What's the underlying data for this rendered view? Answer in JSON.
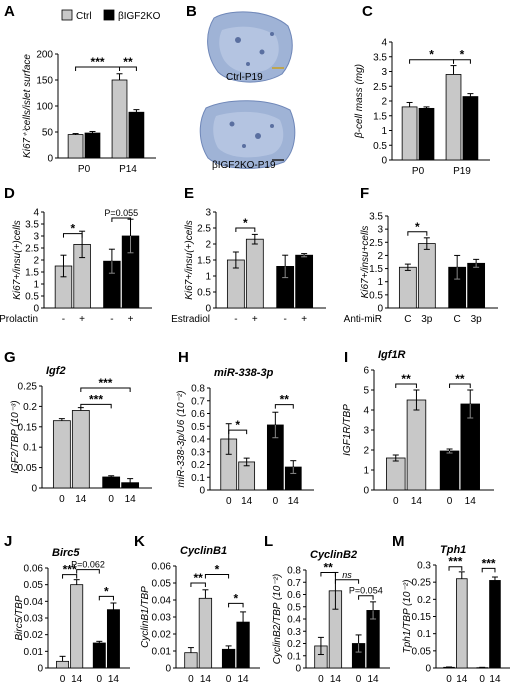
{
  "legend": {
    "ctrl": "Ctrl",
    "ko": "βIGF2KO"
  },
  "colors": {
    "ctrl": "#c8c8c8",
    "ko": "#000000"
  },
  "images": {
    "b_top_caption": "Ctrl-P19",
    "b_bottom_caption": "βIGF2KO-P19"
  },
  "chart_data": [
    {
      "id": "A",
      "type": "bar",
      "ylabel": "Ki67⁺⁾cells/islet surface",
      "ylim": [
        0,
        200
      ],
      "yticks": [
        "0",
        "50",
        "100",
        "150",
        "200"
      ],
      "groups": [
        "P0",
        "P14"
      ],
      "xlabels": [
        "P0",
        "P14"
      ],
      "series": [
        {
          "name": "Ctrl",
          "values": [
            45,
            150
          ],
          "errors": [
            2,
            12
          ]
        },
        {
          "name": "βIGF2KO",
          "values": [
            48,
            88
          ],
          "errors": [
            3,
            5
          ]
        }
      ],
      "sig": [
        {
          "text": "***",
          "a": [
            0,
            0
          ],
          "b": [
            1,
            0
          ],
          "level": 175
        },
        {
          "text": "**",
          "a": [
            1,
            0
          ],
          "b": [
            1,
            1
          ],
          "level": 175
        }
      ]
    },
    {
      "id": "C",
      "type": "bar",
      "ylabel": "β-cell mass (mg)",
      "ylim": [
        0,
        4
      ],
      "yticks": [
        "0",
        "0.5",
        "1",
        "1.5",
        "2",
        "2.5",
        "3",
        "3.5",
        "4"
      ],
      "groups": [
        "P0",
        "P19"
      ],
      "xlabels": [
        "P0",
        "P19"
      ],
      "series": [
        {
          "name": "Ctrl",
          "values": [
            1.8,
            2.9
          ],
          "errors": [
            0.15,
            0.3
          ]
        },
        {
          "name": "βIGF2KO",
          "values": [
            1.75,
            2.15
          ],
          "errors": [
            0.05,
            0.1
          ]
        }
      ],
      "sig": [
        {
          "text": "*",
          "a": [
            0,
            0
          ],
          "b": [
            1,
            0
          ],
          "level": 3.4
        },
        {
          "text": "*",
          "a": [
            1,
            0
          ],
          "b": [
            1,
            1
          ],
          "level": 3.4
        }
      ]
    },
    {
      "id": "D",
      "type": "bar",
      "ylabel": "Ki67+/insu(+)cells",
      "ylim": [
        0,
        4
      ],
      "yticks": [
        "0",
        "0.5",
        "1",
        "1.5",
        "2",
        "2.5",
        "3",
        "3.5",
        "4"
      ],
      "groups": [
        "Ctrl",
        "KO"
      ],
      "xlabels": [
        "-",
        "+",
        "-",
        "+"
      ],
      "xcaption": "Prolactin",
      "series": [
        {
          "name": "Ctrl",
          "values": [
            1.75,
            2.65
          ],
          "errors": [
            0.45,
            0.55
          ]
        },
        {
          "name": "βIGF2KO",
          "values": [
            1.95,
            3.0
          ],
          "errors": [
            0.5,
            0.7
          ]
        }
      ],
      "sig": [
        {
          "text": "*",
          "a": [
            0,
            0
          ],
          "b": [
            0,
            1
          ],
          "level": 3.1
        },
        {
          "text": "P=0.055",
          "a": [
            1,
            0
          ],
          "b": [
            1,
            1
          ],
          "level": 3.75
        }
      ]
    },
    {
      "id": "E",
      "type": "bar",
      "ylabel": "Ki67+/insu(+)cells",
      "ylim": [
        0,
        3
      ],
      "yticks": [
        "0",
        "0.5",
        "1",
        "1.5",
        "2",
        "2.5",
        "3"
      ],
      "groups": [
        "Ctrl",
        "KO"
      ],
      "xlabels": [
        "-",
        "+",
        "-",
        "+"
      ],
      "xcaption": "Estradiol",
      "series": [
        {
          "name": "Ctrl",
          "values": [
            1.5,
            2.15
          ],
          "errors": [
            0.25,
            0.15
          ]
        },
        {
          "name": "βIGF2KO",
          "values": [
            1.3,
            1.65
          ],
          "errors": [
            0.35,
            0.05
          ]
        }
      ],
      "sig": [
        {
          "text": "*",
          "a": [
            0,
            0
          ],
          "b": [
            0,
            1
          ],
          "level": 2.5
        }
      ]
    },
    {
      "id": "F",
      "type": "bar",
      "ylabel": "Ki67+/insu+cells",
      "ylim": [
        0,
        3.5
      ],
      "yticks": [
        "0",
        "0.5",
        "1",
        "1.5",
        "2",
        "2.5",
        "3",
        "3.5"
      ],
      "groups": [
        "Ctrl",
        "KO"
      ],
      "xlabels": [
        "C",
        "3p",
        "C",
        "3p"
      ],
      "xcaption": "Anti-miR",
      "series": [
        {
          "name": "Ctrl",
          "values": [
            1.55,
            2.45
          ],
          "errors": [
            0.12,
            0.22
          ]
        },
        {
          "name": "βIGF2KO",
          "values": [
            1.55,
            1.7
          ],
          "errors": [
            0.45,
            0.15
          ]
        }
      ],
      "sig": [
        {
          "text": "*",
          "a": [
            0,
            0
          ],
          "b": [
            0,
            1
          ],
          "level": 2.9
        }
      ]
    },
    {
      "id": "G",
      "type": "bar",
      "title": "Igf2",
      "ylabel": "IGF2/TBP (10⁻³)",
      "ylim": [
        0,
        0.25
      ],
      "yticks": [
        "0",
        "0.05",
        "0.1",
        "0.15",
        "0.2",
        "0.25"
      ],
      "groups": [
        "Ctrl",
        "KO"
      ],
      "xlabels": [
        "0",
        "14",
        "0",
        "14"
      ],
      "series": [
        {
          "name": "Ctrl",
          "values": [
            0.165,
            0.19
          ],
          "errors": [
            0.005,
            0.007
          ]
        },
        {
          "name": "βIGF2KO",
          "values": [
            0.027,
            0.013
          ],
          "errors": [
            0.003,
            0.01
          ]
        }
      ],
      "sig": [
        {
          "text": "***",
          "a": [
            0,
            1
          ],
          "b": [
            1,
            0
          ],
          "level": 0.205
        },
        {
          "text": "***",
          "a": [
            0,
            1
          ],
          "b": [
            1,
            1
          ],
          "level": 0.245
        }
      ]
    },
    {
      "id": "H",
      "type": "bar",
      "title": "miR-338-3p",
      "ylabel": "miR-338-3p/U6 (10⁻²)",
      "ylim": [
        0,
        0.8
      ],
      "yticks": [
        "0",
        "0.1",
        "0.2",
        "0.3",
        "0.4",
        "0.5",
        "0.6",
        "0.7",
        "0.8"
      ],
      "groups": [
        "Ctrl",
        "KO"
      ],
      "xlabels": [
        "0",
        "14",
        "0",
        "14"
      ],
      "series": [
        {
          "name": "Ctrl",
          "values": [
            0.4,
            0.22
          ],
          "errors": [
            0.12,
            0.03
          ]
        },
        {
          "name": "βIGF2KO",
          "values": [
            0.51,
            0.18
          ],
          "errors": [
            0.1,
            0.05
          ]
        }
      ],
      "sig": [
        {
          "text": "*",
          "a": [
            0,
            0
          ],
          "b": [
            0,
            1
          ],
          "level": 0.47
        },
        {
          "text": "**",
          "a": [
            1,
            0
          ],
          "b": [
            1,
            1
          ],
          "level": 0.67
        }
      ]
    },
    {
      "id": "I",
      "type": "bar",
      "title": "Igf1R",
      "ylabel": "IGF1R/TBP",
      "ylim": [
        0,
        6
      ],
      "yticks": [
        "0",
        "1",
        "2",
        "3",
        "4",
        "5",
        "6"
      ],
      "groups": [
        "Ctrl",
        "KO"
      ],
      "xlabels": [
        "0",
        "14",
        "0",
        "14"
      ],
      "series": [
        {
          "name": "Ctrl",
          "values": [
            1.6,
            4.5
          ],
          "errors": [
            0.15,
            0.5
          ]
        },
        {
          "name": "βIGF2KO",
          "values": [
            1.95,
            4.3
          ],
          "errors": [
            0.1,
            0.7
          ]
        }
      ],
      "sig": [
        {
          "text": "**",
          "a": [
            0,
            0
          ],
          "b": [
            0,
            1
          ],
          "level": 5.3
        },
        {
          "text": "**",
          "a": [
            1,
            0
          ],
          "b": [
            1,
            1
          ],
          "level": 5.3
        }
      ]
    },
    {
      "id": "J",
      "type": "bar",
      "title": "Birc5",
      "ylabel": "Birc5/TBP",
      "ylim": [
        0,
        0.06
      ],
      "yticks": [
        "0",
        "0.01",
        "0.02",
        "0.03",
        "0.04",
        "0.05",
        "0.06"
      ],
      "groups": [
        "Ctrl",
        "KO"
      ],
      "xlabels": [
        "0",
        "14",
        "0",
        "14"
      ],
      "series": [
        {
          "name": "Ctrl",
          "values": [
            0.004,
            0.05
          ],
          "errors": [
            0.003,
            0.003
          ]
        },
        {
          "name": "βIGF2KO",
          "values": [
            0.015,
            0.035
          ],
          "errors": [
            0.001,
            0.004
          ]
        }
      ],
      "sig": [
        {
          "text": "***",
          "a": [
            0,
            0
          ],
          "b": [
            0,
            1
          ],
          "level": 0.056
        },
        {
          "text": "P=0.062",
          "a": [
            0,
            1
          ],
          "b": [
            1,
            0
          ],
          "level": 0.059
        },
        {
          "text": "*",
          "a": [
            1,
            0
          ],
          "b": [
            1,
            1
          ],
          "level": 0.043
        }
      ]
    },
    {
      "id": "K",
      "type": "bar",
      "title": "CyclinB1",
      "ylabel": "CyclinB1/TBP",
      "ylim": [
        0,
        0.06
      ],
      "yticks": [
        "0",
        "0.01",
        "0.02",
        "0.03",
        "0.04",
        "0.05",
        "0.06"
      ],
      "groups": [
        "Ctrl",
        "KO"
      ],
      "xlabels": [
        "0",
        "14",
        "0",
        "14"
      ],
      "series": [
        {
          "name": "Ctrl",
          "values": [
            0.009,
            0.041
          ],
          "errors": [
            0.003,
            0.005
          ]
        },
        {
          "name": "βIGF2KO",
          "values": [
            0.011,
            0.027
          ],
          "errors": [
            0.002,
            0.006
          ]
        }
      ],
      "sig": [
        {
          "text": "**",
          "a": [
            0,
            0
          ],
          "b": [
            0,
            1
          ],
          "level": 0.05
        },
        {
          "text": "*",
          "a": [
            0,
            1
          ],
          "b": [
            1,
            0
          ],
          "level": 0.055
        },
        {
          "text": "*",
          "a": [
            1,
            0
          ],
          "b": [
            1,
            1
          ],
          "level": 0.038
        }
      ]
    },
    {
      "id": "L",
      "type": "bar",
      "title": "CyclinB2",
      "ylabel": "CyclinB2/TBP (10⁻²)",
      "ylim": [
        0,
        0.8
      ],
      "yticks": [
        "0",
        "0.1",
        "0.2",
        "0.3",
        "0.4",
        "0.5",
        "0.6",
        "0.7",
        "0.8"
      ],
      "groups": [
        "Ctrl",
        "KO"
      ],
      "xlabels": [
        "0",
        "14",
        "0",
        "14"
      ],
      "series": [
        {
          "name": "Ctrl",
          "values": [
            0.18,
            0.63
          ],
          "errors": [
            0.07,
            0.15
          ]
        },
        {
          "name": "βIGF2KO",
          "values": [
            0.2,
            0.47
          ],
          "errors": [
            0.07,
            0.07
          ]
        }
      ],
      "sig": [
        {
          "text": "**",
          "a": [
            0,
            0
          ],
          "b": [
            0,
            1
          ],
          "level": 0.78
        },
        {
          "text": "ns",
          "a": [
            0,
            1
          ],
          "b": [
            1,
            0
          ],
          "level": 0.72
        },
        {
          "text": "P=0.054",
          "a": [
            1,
            0
          ],
          "b": [
            1,
            1
          ],
          "level": 0.59
        }
      ]
    },
    {
      "id": "M",
      "type": "bar",
      "title": "Tph1",
      "ylabel": "Tph1/TBP (10⁻²)",
      "ylim": [
        0,
        0.3
      ],
      "yticks": [
        "0",
        "0.05",
        "0.1",
        "0.15",
        "0.2",
        "0.25",
        "0.3"
      ],
      "groups": [
        "Ctrl",
        "KO"
      ],
      "xlabels": [
        "0",
        "14",
        "0",
        "14"
      ],
      "series": [
        {
          "name": "Ctrl",
          "values": [
            0.002,
            0.26
          ],
          "errors": [
            0.001,
            0.02
          ]
        },
        {
          "name": "βIGF2KO",
          "values": [
            0.001,
            0.255
          ],
          "errors": [
            0.001,
            0.01
          ]
        }
      ],
      "sig": [
        {
          "text": "***",
          "a": [
            0,
            0
          ],
          "b": [
            0,
            1
          ],
          "level": 0.295
        },
        {
          "text": "***",
          "a": [
            1,
            0
          ],
          "b": [
            1,
            1
          ],
          "level": 0.29
        }
      ]
    }
  ]
}
